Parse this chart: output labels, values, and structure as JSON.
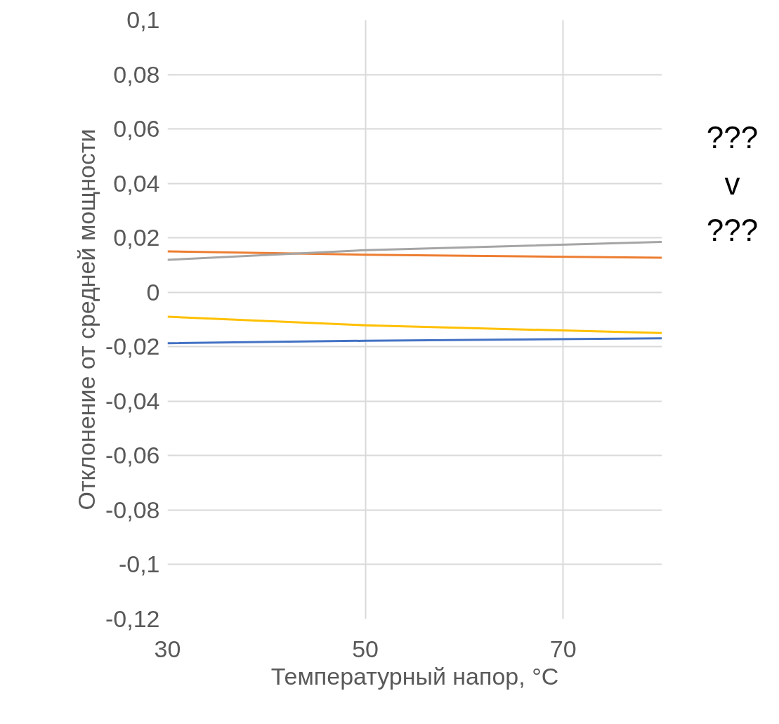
{
  "chart_data": {
    "type": "line",
    "xlabel": "Температурный напор, °C",
    "ylabel": "Отклонение от средней мощности",
    "x": [
      30,
      50,
      80
    ],
    "series": [
      {
        "color": "#4472c4",
        "values": [
          -0.0187,
          -0.0178,
          -0.0169
        ]
      },
      {
        "color": "#ed7d31",
        "values": [
          0.015,
          0.0138,
          0.0127
        ]
      },
      {
        "color": "#a5a5a5",
        "values": [
          0.0119,
          0.0155,
          0.0185
        ]
      },
      {
        "color": "#ffc000",
        "values": [
          -0.009,
          -0.0121,
          -0.015
        ]
      }
    ],
    "xlim": [
      30,
      80
    ],
    "xticks": [
      30,
      50,
      70
    ],
    "ylim": [
      -0.12,
      0.1
    ],
    "yticks": [
      {
        "value": 0.1,
        "label": "0,1"
      },
      {
        "value": 0.08,
        "label": "0,08"
      },
      {
        "value": 0.06,
        "label": "0,06"
      },
      {
        "value": 0.04,
        "label": "0,04"
      },
      {
        "value": 0.02,
        "label": "0,02"
      },
      0,
      {
        "value": -0.02,
        "label": "-0,02"
      },
      {
        "value": -0.04,
        "label": "-0,04"
      },
      {
        "value": -0.06,
        "label": "-0,06"
      },
      {
        "value": -0.08,
        "label": "-0,08"
      },
      {
        "value": -0.1,
        "label": "-0,1"
      },
      {
        "value": -0.12,
        "label": "-0,12"
      }
    ],
    "grid": true,
    "marker": "none",
    "line_style": "solid",
    "annotations": [
      "???",
      "v",
      "???"
    ]
  }
}
